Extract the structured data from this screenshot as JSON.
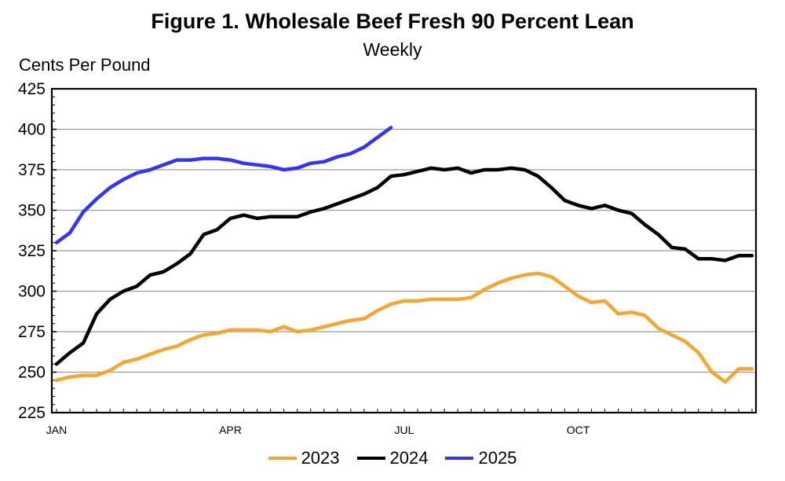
{
  "chart_data": {
    "type": "line",
    "title": "Figure 1. Wholesale Beef Fresh 90 Percent Lean",
    "subtitle": "Weekly",
    "ylabel": "Cents Per Pound",
    "ylim": [
      225,
      425
    ],
    "yticks": [
      225,
      250,
      275,
      300,
      325,
      350,
      375,
      400,
      425
    ],
    "xlim": [
      1,
      53
    ],
    "xtick_labels": [
      {
        "label": "JAN",
        "week": 1
      },
      {
        "label": "APR",
        "week": 14
      },
      {
        "label": "JUL",
        "week": 27
      },
      {
        "label": "OCT",
        "week": 40
      }
    ],
    "grid": true,
    "legend": "bottom",
    "series": [
      {
        "name": "2023",
        "color": "#F7A531",
        "x": [
          1,
          2,
          3,
          4,
          5,
          6,
          7,
          8,
          9,
          10,
          11,
          12,
          13,
          14,
          15,
          16,
          17,
          18,
          19,
          20,
          21,
          22,
          23,
          24,
          25,
          26,
          27,
          28,
          29,
          30,
          31,
          32,
          33,
          34,
          35,
          36,
          37,
          38,
          39,
          40,
          41,
          42,
          43,
          44,
          45,
          46,
          47,
          48,
          49,
          50,
          51,
          52,
          53
        ],
        "values": [
          245,
          247,
          248,
          248,
          251,
          256,
          258,
          261,
          264,
          266,
          270,
          273,
          274,
          276,
          276,
          276,
          275,
          278,
          275,
          276,
          278,
          280,
          282,
          283,
          288,
          292,
          294,
          294,
          295,
          295,
          295,
          296,
          301,
          305,
          308,
          310,
          311,
          309,
          303,
          297,
          293,
          294,
          286,
          287,
          285,
          277,
          273,
          269,
          262,
          250,
          244,
          252,
          252
        ]
      },
      {
        "name": "2024",
        "color": "#000000",
        "x": [
          1,
          2,
          3,
          4,
          5,
          6,
          7,
          8,
          9,
          10,
          11,
          12,
          13,
          14,
          15,
          16,
          17,
          18,
          19,
          20,
          21,
          22,
          23,
          24,
          25,
          26,
          27,
          28,
          29,
          30,
          31,
          32,
          33,
          34,
          35,
          36,
          37,
          38,
          39,
          40,
          41,
          42,
          43,
          44,
          45,
          46,
          47,
          48,
          49,
          50,
          51,
          52,
          53
        ],
        "values": [
          255,
          262,
          268,
          286,
          295,
          300,
          303,
          310,
          312,
          317,
          323,
          335,
          338,
          345,
          347,
          345,
          346,
          346,
          346,
          349,
          351,
          354,
          357,
          360,
          364,
          371,
          372,
          374,
          376,
          375,
          376,
          373,
          375,
          375,
          376,
          375,
          371,
          364,
          356,
          353,
          351,
          353,
          350,
          348,
          341,
          335,
          327,
          326,
          320,
          320,
          319,
          322,
          322
        ]
      },
      {
        "name": "2025",
        "color": "#3333FF",
        "x": [
          1,
          2,
          3,
          4,
          5,
          6,
          7,
          8,
          9,
          10,
          11,
          12,
          13,
          14,
          15,
          16,
          17,
          18,
          19,
          20,
          21,
          22,
          23,
          24,
          25,
          26
        ],
        "values": [
          330,
          336,
          349,
          357,
          364,
          369,
          373,
          375,
          378,
          381,
          381,
          382,
          382,
          381,
          379,
          378,
          377,
          375,
          376,
          379,
          380,
          383,
          385,
          389,
          395,
          401
        ]
      }
    ]
  }
}
